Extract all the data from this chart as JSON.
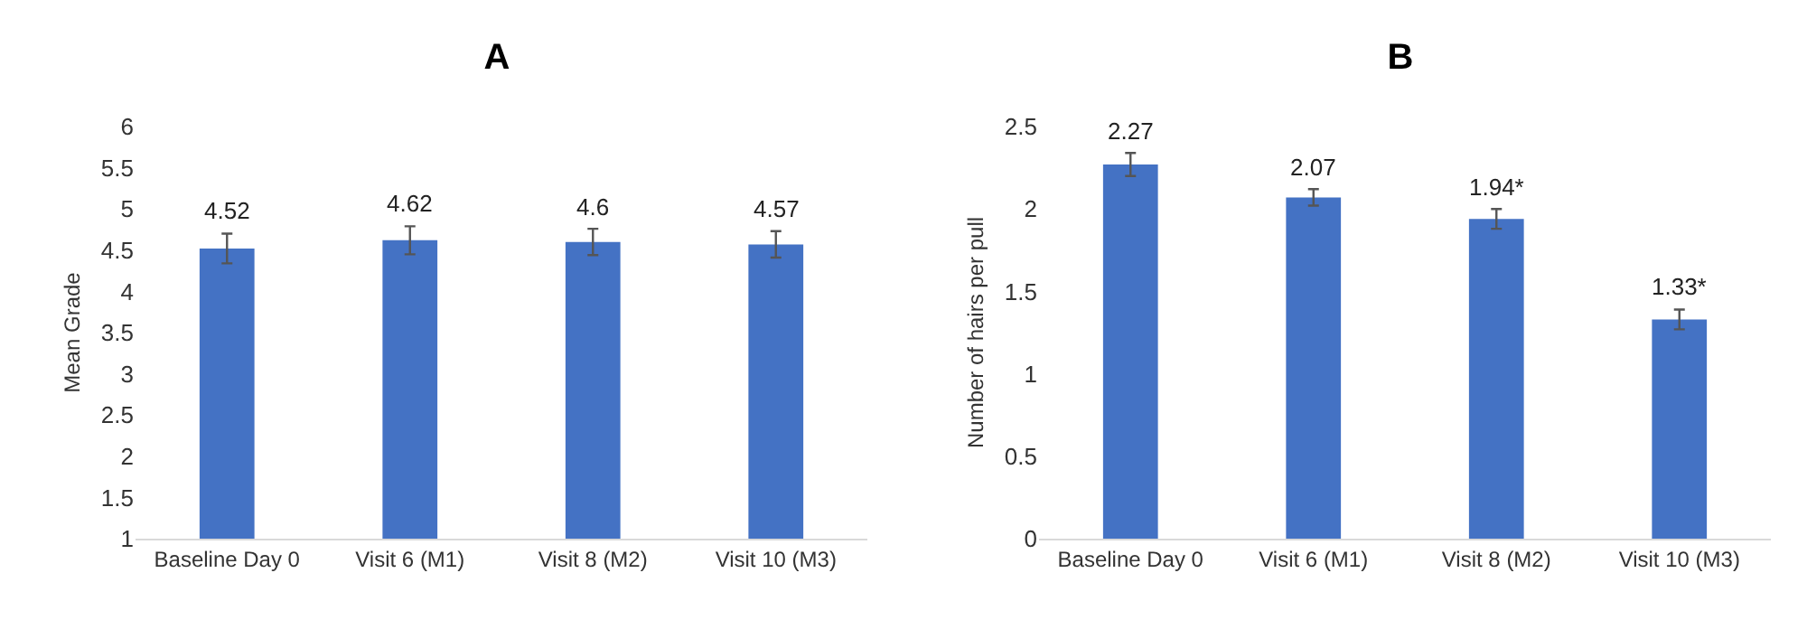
{
  "chart_data": [
    {
      "type": "bar",
      "title": "A",
      "ylabel": "Mean Grade",
      "categories": [
        "Baseline Day 0",
        "Visit 6 (M1)",
        "Visit 8 (M2)",
        "Visit 10 (M3)"
      ],
      "values": [
        4.52,
        4.62,
        4.6,
        4.57
      ],
      "errors": [
        0.18,
        0.17,
        0.16,
        0.16
      ],
      "color": "#4472c4",
      "data_labels": true,
      "ylim": [
        1,
        6
      ],
      "yticks": [
        1,
        1.5,
        2,
        2.5,
        3,
        3.5,
        4,
        4.5,
        5,
        5.5,
        6
      ],
      "grid": false
    },
    {
      "type": "bar",
      "title": "B",
      "ylabel": "Number of hairs per pull",
      "categories": [
        "Baseline Day 0",
        "Visit 6 (M1)",
        "Visit 8 (M2)",
        "Visit 10 (M3)"
      ],
      "values": [
        2.27,
        2.07,
        1.94,
        1.33
      ],
      "errors": [
        0.07,
        0.05,
        0.06,
        0.06
      ],
      "color": "#4472c4",
      "value_labels": [
        "2.27",
        "2.07",
        "1.94*",
        "1.33*"
      ],
      "ylim": [
        0,
        2.5
      ],
      "yticks": [
        0,
        0.5,
        1,
        1.5,
        2,
        2.5
      ],
      "grid": false
    }
  ]
}
